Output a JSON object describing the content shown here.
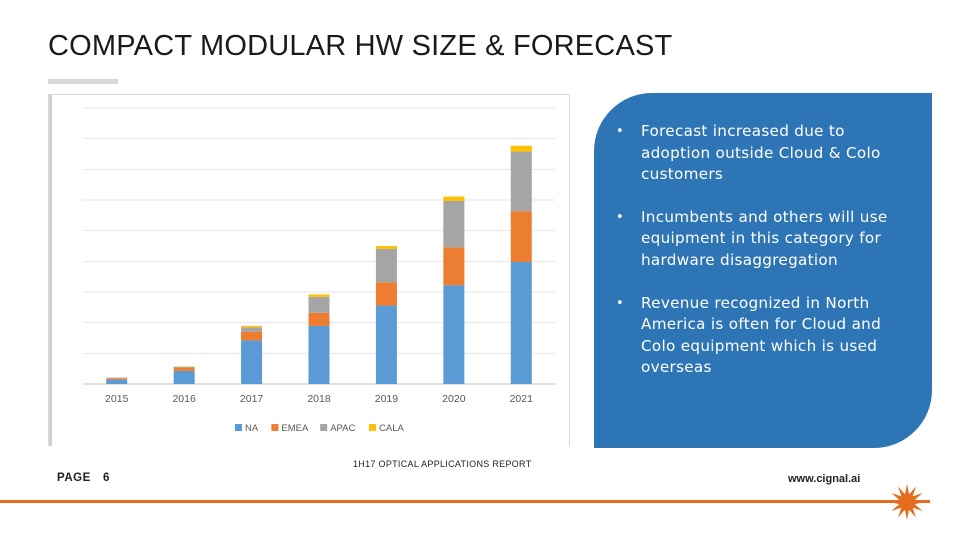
{
  "page": {
    "title": "COMPACT MODULAR HW SIZE & FORECAST"
  },
  "chart_data": {
    "type": "bar",
    "stacked": true,
    "categories": [
      "2015",
      "2016",
      "2017",
      "2018",
      "2019",
      "2020",
      "2021"
    ],
    "series": [
      {
        "name": "NA",
        "color": "#5b9bd5",
        "values": [
          0.15,
          0.45,
          1.5,
          2.0,
          2.7,
          3.4,
          4.2
        ]
      },
      {
        "name": "EMEA",
        "color": "#ed7d31",
        "values": [
          0.05,
          0.1,
          0.3,
          0.45,
          0.8,
          1.3,
          1.75
        ]
      },
      {
        "name": "APAC",
        "color": "#a5a5a5",
        "values": [
          0.02,
          0.04,
          0.15,
          0.55,
          1.15,
          1.6,
          2.05
        ]
      },
      {
        "name": "CALA",
        "color": "#ffc000",
        "values": [
          0.0,
          0.01,
          0.05,
          0.08,
          0.1,
          0.15,
          0.2
        ]
      }
    ],
    "ylim": [
      0,
      9.5
    ],
    "grid": true,
    "legend": "bottom",
    "title": "",
    "xlabel": "",
    "ylabel": ""
  },
  "panel": {
    "accent": "#2e75b6",
    "bullets": [
      "Forecast increased due to adoption outside Cloud & Colo customers",
      "Incumbents and others will use equipment in this category for hardware disaggregation",
      "Revenue recognized in North America is often for Cloud and Colo equipment which is used overseas"
    ]
  },
  "footer": {
    "page_label": "PAGE",
    "page_number": "6",
    "report": "1H17 OPTICAL APPLICATIONS REPORT",
    "url": "www.cignal.ai",
    "accent": "#e36c1e"
  }
}
